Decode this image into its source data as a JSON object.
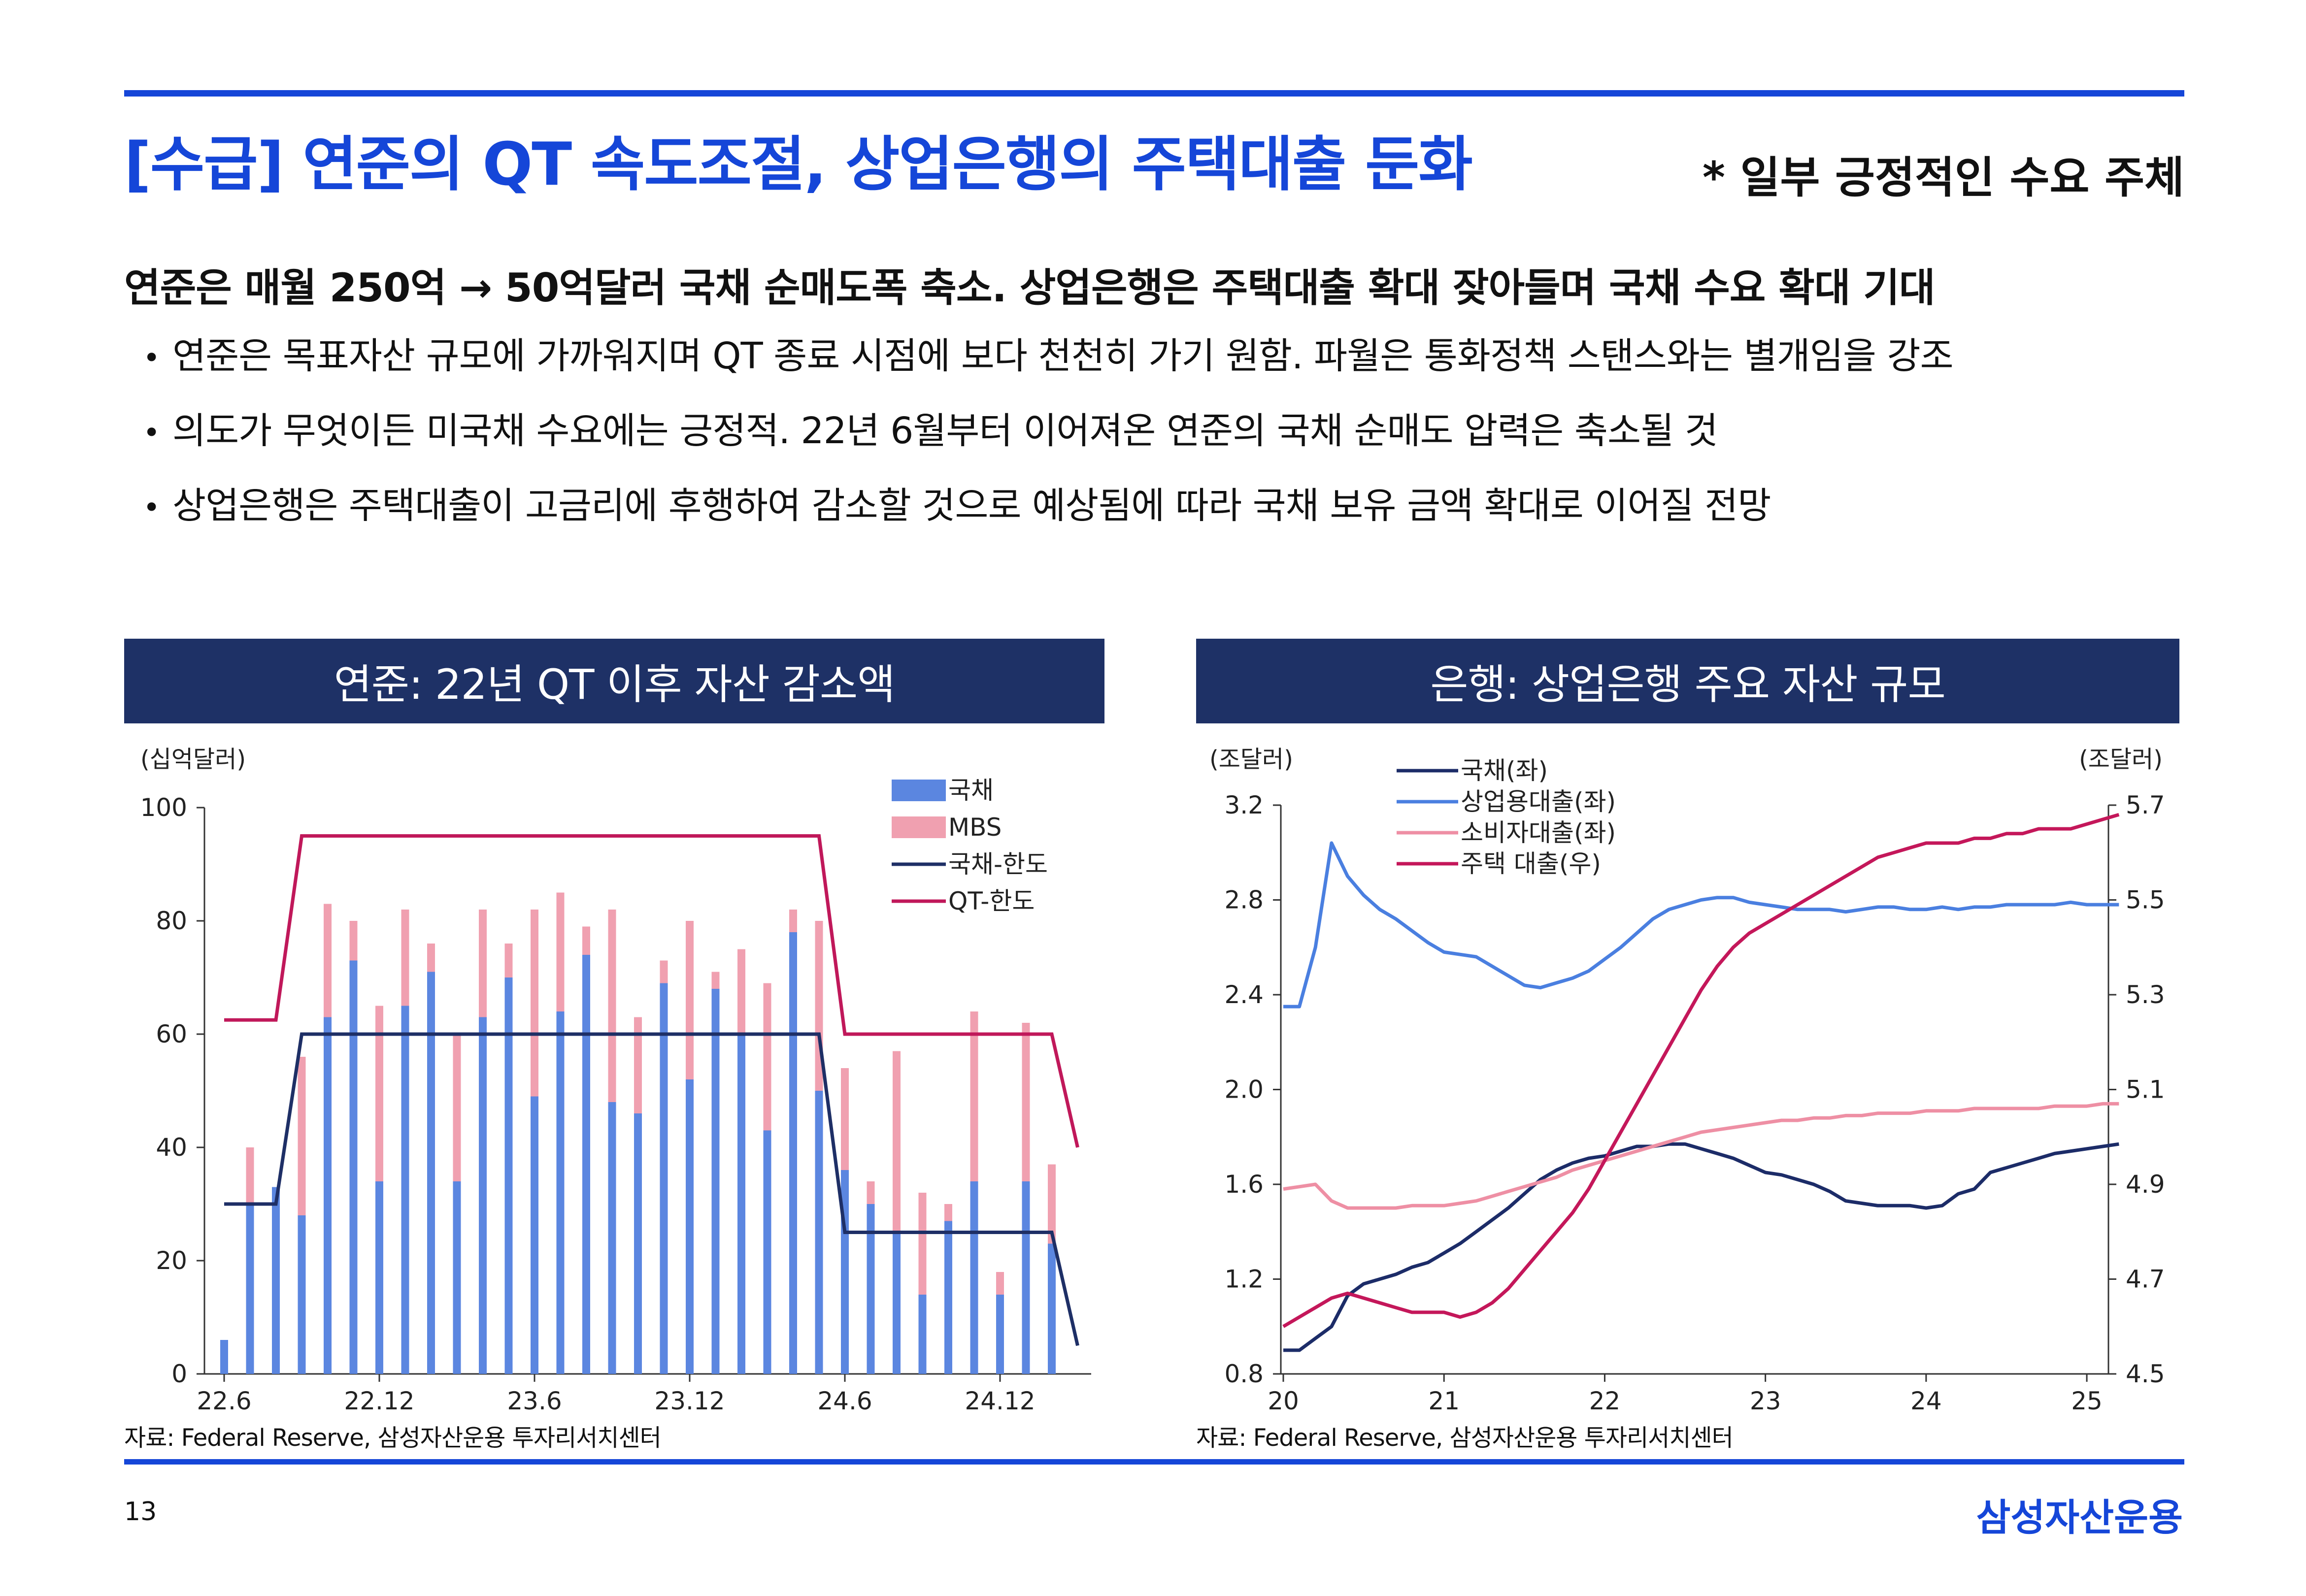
{
  "header": {
    "title": "[수급] 연준의 QT 속도조절, 상업은행의 주택대출 둔화",
    "side_note": "* 일부 긍정적인 수요 주체"
  },
  "body": {
    "lead": "연준은 매월 250억 → 50억달러 국채 순매도폭 축소. 상업은행은 주택대출 확대 잦아들며 국채 수요 확대 기대",
    "bullet_mark": "•",
    "bullets": [
      "연준은 목표자산 규모에 가까워지며 QT 종료 시점에 보다 천천히 가기 원함. 파월은 통화정책 스탠스와는 별개임을 강조",
      "의도가 무엇이든 미국채 수요에는 긍정적. 22년 6월부터 이어져온 연준의 국채 순매도 압력은 축소될 것",
      "상업은행은 주택대출이 고금리에 후행하여 감소할 것으로 예상됨에 따라 국채 보유 금액 확대로 이어질 전망"
    ]
  },
  "panels": {
    "left_title": "연준: 22년 QT 이후 자산 감소액",
    "right_title": "은행: 상업은행 주요 자산 규모",
    "left_source": "자료: Federal Reserve, 삼성자산운용 투자리서치센터",
    "right_source": "자료: Federal Reserve, 삼성자산운용 투자리서치센터"
  },
  "footer": {
    "page": "13",
    "brand": "삼성자산운용"
  },
  "colors": {
    "accent": "#1546d8",
    "panel_header": "#1e3166",
    "treasury_bar": "#5b86e0",
    "mbs_bar": "#f0a0b0",
    "treasury_cap": "#1e2f66",
    "qt_cap": "#c0185a",
    "treasuries_line": "#1c2c68",
    "ci_loans_line": "#4a7fe0",
    "consumer_loans_line": "#ee8fa4",
    "re_loans_line": "#c4175a"
  },
  "chart_data": [
    {
      "type": "bar",
      "stacked": true,
      "y_unit": "(십억달러)",
      "ylim": [
        0,
        100
      ],
      "yticks": [
        0,
        20,
        40,
        60,
        80,
        100
      ],
      "x_tick_labels": [
        "22.6",
        "22.12",
        "23.6",
        "23.12",
        "24.6",
        "24.12"
      ],
      "categories": [
        "22.6",
        "22.7",
        "22.8",
        "22.9",
        "22.10",
        "22.11",
        "22.12",
        "23.1",
        "23.2",
        "23.3",
        "23.4",
        "23.5",
        "23.6",
        "23.7",
        "23.8",
        "23.9",
        "23.10",
        "23.11",
        "23.12",
        "24.1",
        "24.2",
        "24.3",
        "24.4",
        "24.5",
        "24.6",
        "24.7",
        "24.8",
        "24.9",
        "24.10",
        "24.11",
        "24.12",
        "25.1",
        "25.2",
        "25.3"
      ],
      "series": [
        {
          "name": "국채",
          "values": [
            6,
            30,
            33,
            28,
            63,
            73,
            34,
            65,
            71,
            34,
            63,
            70,
            49,
            64,
            74,
            48,
            46,
            69,
            52,
            68,
            60,
            43,
            78,
            50,
            36,
            30,
            25,
            14,
            27,
            34,
            14,
            34,
            23,
            null
          ]
        },
        {
          "name": "MBS",
          "values": [
            0,
            10,
            0,
            28,
            20,
            7,
            31,
            17,
            5,
            26,
            19,
            6,
            33,
            21,
            5,
            34,
            17,
            4,
            28,
            3,
            15,
            26,
            4,
            30,
            18,
            4,
            32,
            18,
            3,
            30,
            4,
            28,
            14,
            null
          ]
        }
      ],
      "lines": [
        {
          "name": "국채-한도",
          "values": [
            30,
            30,
            30,
            60,
            60,
            60,
            60,
            60,
            60,
            60,
            60,
            60,
            60,
            60,
            60,
            60,
            60,
            60,
            60,
            60,
            60,
            60,
            60,
            60,
            25,
            25,
            25,
            25,
            25,
            25,
            25,
            25,
            25,
            5
          ]
        },
        {
          "name": "QT-한도",
          "values": [
            62.5,
            62.5,
            62.5,
            95,
            95,
            95,
            95,
            95,
            95,
            95,
            95,
            95,
            95,
            95,
            95,
            95,
            95,
            95,
            95,
            95,
            95,
            95,
            95,
            95,
            60,
            60,
            60,
            60,
            60,
            60,
            60,
            60,
            60,
            40
          ]
        }
      ]
    },
    {
      "type": "line",
      "y_unit_left": "(조달러)",
      "y_unit_right": "(조달러)",
      "x_tick_labels": [
        "20",
        "21",
        "22",
        "23",
        "24",
        "25"
      ],
      "x": [
        2020.0,
        2020.1,
        2020.2,
        2020.3,
        2020.4,
        2020.5,
        2020.6,
        2020.7,
        2020.8,
        2020.9,
        2021.0,
        2021.1,
        2021.2,
        2021.3,
        2021.4,
        2021.5,
        2021.6,
        2021.7,
        2021.8,
        2021.9,
        2022.0,
        2022.1,
        2022.2,
        2022.3,
        2022.4,
        2022.5,
        2022.6,
        2022.7,
        2022.8,
        2022.9,
        2023.0,
        2023.1,
        2023.2,
        2023.3,
        2023.4,
        2023.5,
        2023.6,
        2023.7,
        2023.8,
        2023.9,
        2024.0,
        2024.1,
        2024.2,
        2024.3,
        2024.4,
        2024.5,
        2024.6,
        2024.7,
        2024.8,
        2024.9,
        2025.0,
        2025.1,
        2025.2
      ],
      "ylim_left": [
        0.8,
        3.2
      ],
      "yticks_left": [
        0.8,
        1.2,
        1.6,
        2.0,
        2.4,
        2.8,
        3.2
      ],
      "ylim_right": [
        4.5,
        5.7
      ],
      "yticks_right": [
        4.5,
        4.7,
        4.9,
        5.1,
        5.3,
        5.5,
        5.7
      ],
      "series": [
        {
          "name": "국채(좌)",
          "axis": "left",
          "values": [
            0.9,
            0.9,
            0.95,
            1.0,
            1.13,
            1.18,
            1.2,
            1.22,
            1.25,
            1.27,
            1.31,
            1.35,
            1.4,
            1.45,
            1.5,
            1.56,
            1.62,
            1.66,
            1.69,
            1.71,
            1.72,
            1.74,
            1.76,
            1.76,
            1.77,
            1.77,
            1.75,
            1.73,
            1.71,
            1.68,
            1.65,
            1.64,
            1.62,
            1.6,
            1.57,
            1.53,
            1.52,
            1.51,
            1.51,
            1.51,
            1.5,
            1.51,
            1.56,
            1.58,
            1.65,
            1.67,
            1.69,
            1.71,
            1.73,
            1.74,
            1.75,
            1.76,
            1.77
          ]
        },
        {
          "name": "상업용대출(좌)",
          "axis": "left",
          "values": [
            2.35,
            2.35,
            2.6,
            3.04,
            2.9,
            2.82,
            2.76,
            2.72,
            2.67,
            2.62,
            2.58,
            2.57,
            2.56,
            2.52,
            2.48,
            2.44,
            2.43,
            2.45,
            2.47,
            2.5,
            2.55,
            2.6,
            2.66,
            2.72,
            2.76,
            2.78,
            2.8,
            2.81,
            2.81,
            2.79,
            2.78,
            2.77,
            2.76,
            2.76,
            2.76,
            2.75,
            2.76,
            2.77,
            2.77,
            2.76,
            2.76,
            2.77,
            2.76,
            2.77,
            2.77,
            2.78,
            2.78,
            2.78,
            2.78,
            2.79,
            2.78,
            2.78,
            2.78
          ]
        },
        {
          "name": "소비자대출(좌)",
          "axis": "left",
          "values": [
            1.58,
            1.59,
            1.6,
            1.53,
            1.5,
            1.5,
            1.5,
            1.5,
            1.51,
            1.51,
            1.51,
            1.52,
            1.53,
            1.55,
            1.57,
            1.59,
            1.61,
            1.63,
            1.66,
            1.68,
            1.7,
            1.72,
            1.74,
            1.76,
            1.78,
            1.8,
            1.82,
            1.83,
            1.84,
            1.85,
            1.86,
            1.87,
            1.87,
            1.88,
            1.88,
            1.89,
            1.89,
            1.9,
            1.9,
            1.9,
            1.91,
            1.91,
            1.91,
            1.92,
            1.92,
            1.92,
            1.92,
            1.92,
            1.93,
            1.93,
            1.93,
            1.94,
            1.94
          ]
        },
        {
          "name": "주택 대출(우)",
          "axis": "right",
          "values": [
            4.6,
            4.62,
            4.64,
            4.66,
            4.67,
            4.66,
            4.65,
            4.64,
            4.63,
            4.63,
            4.63,
            4.62,
            4.63,
            4.65,
            4.68,
            4.72,
            4.76,
            4.8,
            4.84,
            4.89,
            4.95,
            5.01,
            5.07,
            5.13,
            5.19,
            5.25,
            5.31,
            5.36,
            5.4,
            5.43,
            5.45,
            5.47,
            5.49,
            5.51,
            5.53,
            5.55,
            5.57,
            5.59,
            5.6,
            5.61,
            5.62,
            5.62,
            5.62,
            5.63,
            5.63,
            5.64,
            5.64,
            5.65,
            5.65,
            5.65,
            5.66,
            5.67,
            5.68
          ]
        }
      ]
    }
  ]
}
